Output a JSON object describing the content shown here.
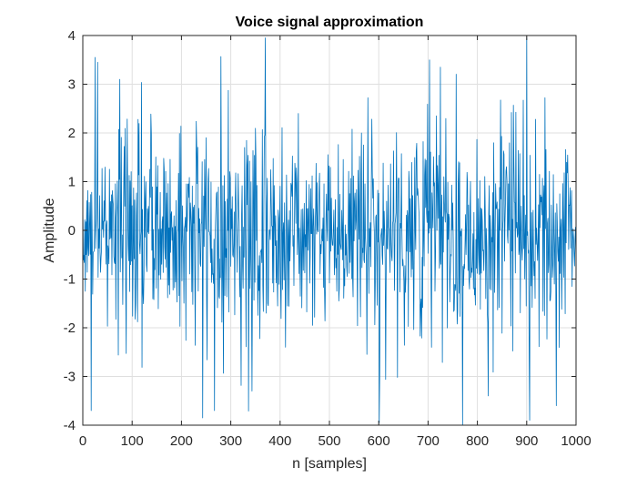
{
  "chart_data": {
    "type": "line",
    "title": "Voice signal approximation",
    "xlabel": "n [samples]",
    "ylabel": "Amplitude",
    "xlim": [
      0,
      1000
    ],
    "ylim": [
      -4,
      4
    ],
    "xticks": [
      0,
      100,
      200,
      300,
      400,
      500,
      600,
      700,
      800,
      900,
      1000
    ],
    "yticks": [
      -4,
      -3,
      -2,
      -1,
      0,
      1,
      2,
      3,
      4
    ],
    "xtick_labels": [
      "0",
      "100",
      "200",
      "300",
      "400",
      "500",
      "600",
      "700",
      "800",
      "900",
      "1000"
    ],
    "ytick_labels": [
      "-4",
      "-3",
      "-2",
      "-1",
      "0",
      "1",
      "2",
      "3",
      "4"
    ],
    "grid": true,
    "series": [
      {
        "color": "#0072BD",
        "sample_count": 1000,
        "envelope_points": [
          {
            "n": 0,
            "peak": 1.6
          },
          {
            "n": 100,
            "peak": 3.2
          },
          {
            "n": 200,
            "peak": 2.8
          },
          {
            "n": 300,
            "peak": 2.9
          },
          {
            "n": 370,
            "peak": 3.9
          },
          {
            "n": 450,
            "peak": 2.0
          },
          {
            "n": 520,
            "peak": 2.2
          },
          {
            "n": 600,
            "peak": 3.0
          },
          {
            "n": 700,
            "peak": 3.6
          },
          {
            "n": 800,
            "peak": 2.5
          },
          {
            "n": 900,
            "peak": 3.9
          },
          {
            "n": 1000,
            "peak": 2.0
          }
        ],
        "extremes": [
          {
            "n": 17,
            "y": -3.7
          },
          {
            "n": 25,
            "y": 3.55
          },
          {
            "n": 30,
            "y": 3.45
          },
          {
            "n": 75,
            "y": 3.1
          },
          {
            "n": 243,
            "y": -3.85
          },
          {
            "n": 267,
            "y": -3.7
          },
          {
            "n": 343,
            "y": -3.3
          },
          {
            "n": 370,
            "y": 3.95
          },
          {
            "n": 601,
            "y": -3.95
          },
          {
            "n": 703,
            "y": 3.5
          },
          {
            "n": 770,
            "y": -4.0
          },
          {
            "n": 822,
            "y": -3.4
          },
          {
            "n": 900,
            "y": 3.95
          },
          {
            "n": 960,
            "y": -3.6
          }
        ]
      }
    ]
  }
}
